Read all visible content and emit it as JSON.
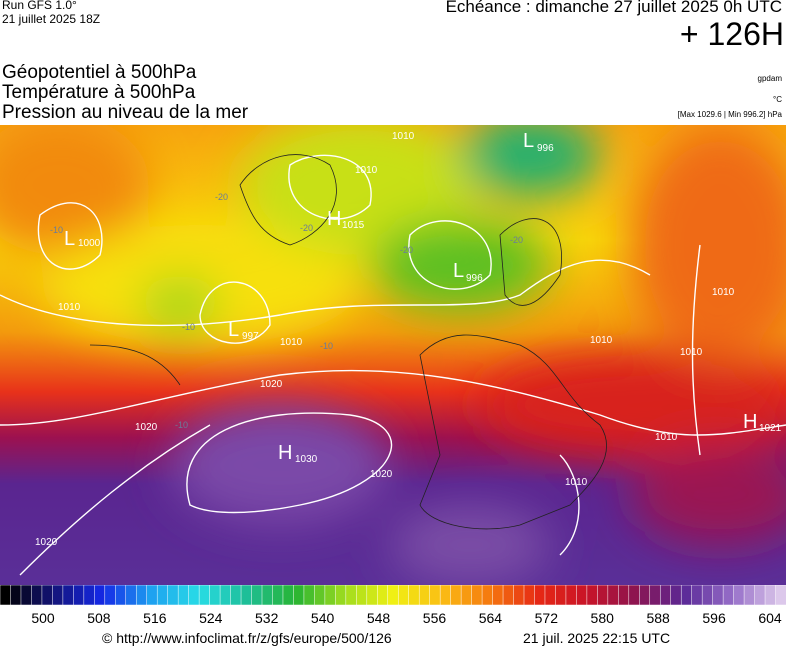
{
  "header": {
    "run": "Run GFS 1.0°",
    "run_date": "21 juillet 2025 18Z",
    "echeance": "Echéance : dimanche 27 juillet 2025 0h UTC",
    "lead": "+ 126H"
  },
  "layers": [
    "Géopotentiel à 500hPa",
    "Température à 500hPa",
    "Pression au niveau de la mer"
  ],
  "units": {
    "geopotential": "gpdam",
    "temperature": "°C",
    "pressure": "[Max 1029.6 | Min 996.2] hPa"
  },
  "centers": [
    {
      "letter": "L",
      "value": "1000"
    },
    {
      "letter": "H",
      "value": "1015"
    },
    {
      "letter": "L",
      "value": "996"
    },
    {
      "letter": "L",
      "value": "996"
    },
    {
      "letter": "L",
      "value": "997"
    },
    {
      "letter": "H",
      "value": "1030"
    },
    {
      "letter": "H",
      "value": "1021"
    }
  ],
  "isobar_labels": [
    "1010",
    "1010",
    "1010",
    "1010",
    "1010",
    "1020",
    "1020",
    "1020",
    "1020",
    "1010",
    "1010",
    "1010",
    "1010"
  ],
  "temperature_labels": [
    "-10",
    "-20",
    "-20",
    "-20",
    "-20",
    "-10",
    "-10",
    "-10"
  ],
  "colorbar": {
    "ticks": [
      500,
      508,
      516,
      524,
      532,
      540,
      548,
      556,
      564,
      572,
      580,
      588,
      596,
      604
    ]
  },
  "footer": {
    "source": "© http://www.infoclimat.fr/z/gfs/europe/500/126",
    "generated": "21 juil. 2025 22:15 UTC"
  }
}
